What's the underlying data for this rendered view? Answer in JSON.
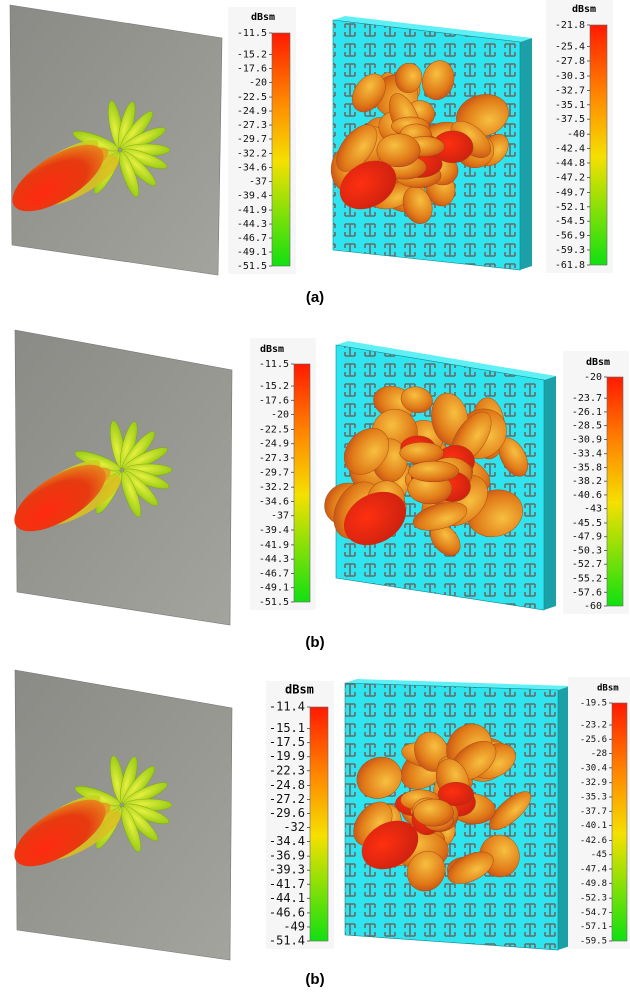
{
  "panels": [
    {
      "unit": "dBsm",
      "ticks": [
        -11.5,
        -15.2,
        -17.6,
        -20,
        -22.5,
        -24.9,
        -27.3,
        -29.7,
        -32.2,
        -34.6,
        -37,
        -39.4,
        -41.9,
        -44.3,
        -46.7,
        -49.1,
        -51.5
      ]
    },
    {
      "unit": "dBsm",
      "ticks": [
        -21.8,
        -25.4,
        -27.8,
        -30.3,
        -32.7,
        -35.1,
        -37.5,
        -40,
        -42.4,
        -44.8,
        -47.2,
        -49.7,
        -52.1,
        -54.5,
        -56.9,
        -59.3,
        -61.8
      ]
    },
    {
      "unit": "dBsm",
      "ticks": [
        -11.5,
        -15.2,
        -17.6,
        -20,
        -22.5,
        -24.9,
        -27.3,
        -29.7,
        -32.2,
        -34.6,
        -37,
        -39.4,
        -41.9,
        -44.3,
        -46.7,
        -49.1,
        -51.5
      ]
    },
    {
      "unit": "dBsm",
      "ticks": [
        -20,
        -23.7,
        -26.1,
        -28.5,
        -30.9,
        -33.4,
        -35.8,
        -38.2,
        -40.6,
        -43,
        -45.5,
        -47.9,
        -50.3,
        -52.7,
        -55.2,
        -57.6,
        -60
      ]
    },
    {
      "unit": "dBsm",
      "ticks": [
        -11.4,
        -15.1,
        -17.5,
        -19.9,
        -22.3,
        -24.8,
        -27.2,
        -29.6,
        -32,
        -34.4,
        -36.9,
        -39.3,
        -41.7,
        -44.1,
        -46.6,
        -49,
        -51.4
      ]
    },
    {
      "unit": "dBsm",
      "ticks": [
        -19.5,
        -23.2,
        -25.6,
        -28,
        -30.4,
        -32.9,
        -35.3,
        -37.7,
        -40.1,
        -42.6,
        -45,
        -47.4,
        -49.8,
        -52.3,
        -54.7,
        -57.1,
        -59.5
      ]
    }
  ],
  "captions": [
    "(a)",
    "(b)",
    "(b)"
  ]
}
